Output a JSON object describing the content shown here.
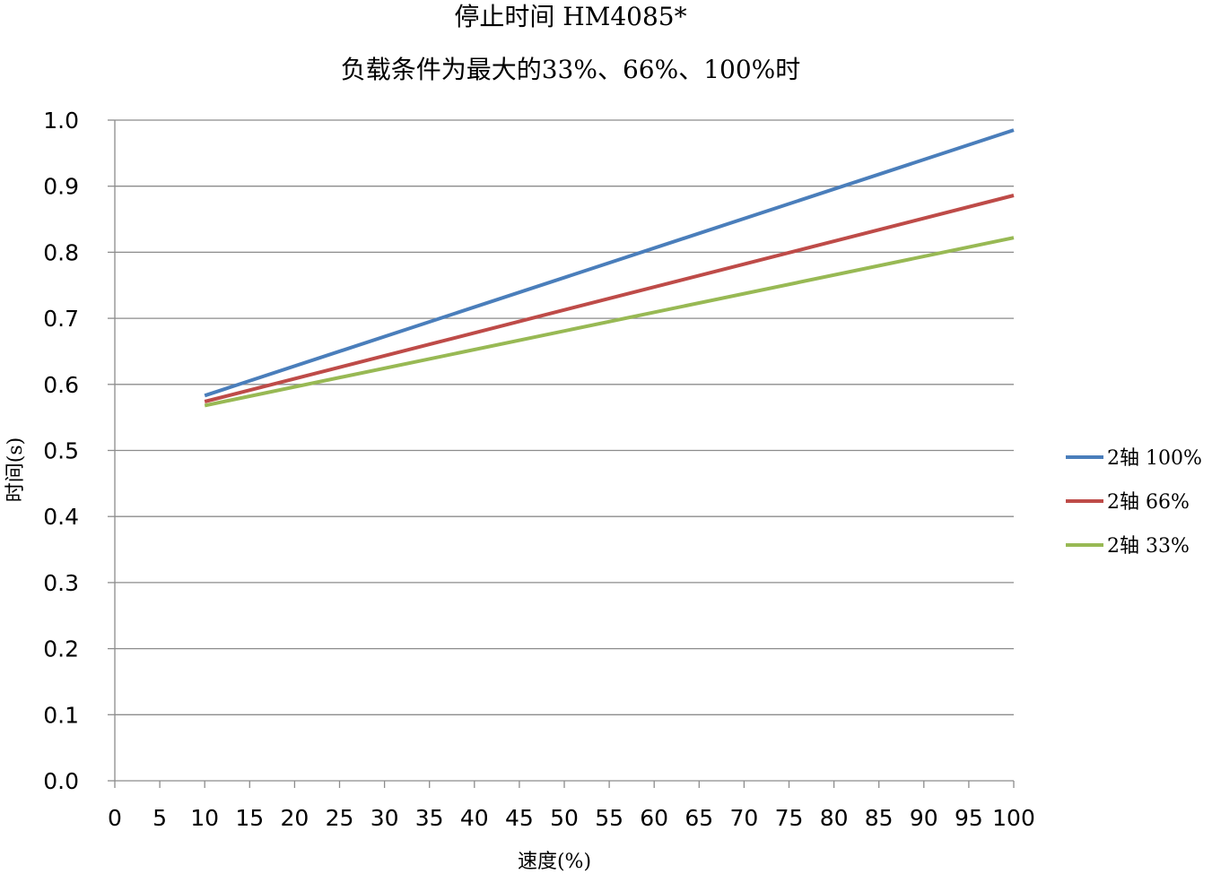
{
  "chart_data": {
    "type": "line",
    "title": "停止时间 HM4085*",
    "subtitle": "负载条件为最大的33%、66%、100%时",
    "xlabel": "速度(%)",
    "ylabel": "时间(s)",
    "xlim": [
      0,
      100
    ],
    "ylim": [
      0.0,
      1.0
    ],
    "x_ticks": [
      "0",
      "5",
      "10",
      "15",
      "20",
      "25",
      "30",
      "35",
      "40",
      "45",
      "50",
      "55",
      "60",
      "65",
      "70",
      "75",
      "80",
      "85",
      "90",
      "95",
      "100"
    ],
    "y_ticks": [
      "0.0",
      "0.1",
      "0.2",
      "0.3",
      "0.4",
      "0.5",
      "0.6",
      "0.7",
      "0.8",
      "0.9",
      "1.0"
    ],
    "grid": "horizontal",
    "legend_position": "right",
    "series": [
      {
        "name": "2轴 100%",
        "color": "#4a7ebb",
        "x": [
          10,
          100
        ],
        "values": [
          0.583,
          0.985
        ]
      },
      {
        "name": "2轴 66%",
        "color": "#be4b48",
        "x": [
          10,
          100
        ],
        "values": [
          0.574,
          0.886
        ]
      },
      {
        "name": "2轴 33%",
        "color": "#98b954",
        "x": [
          10,
          100
        ],
        "values": [
          0.568,
          0.822
        ]
      }
    ]
  }
}
